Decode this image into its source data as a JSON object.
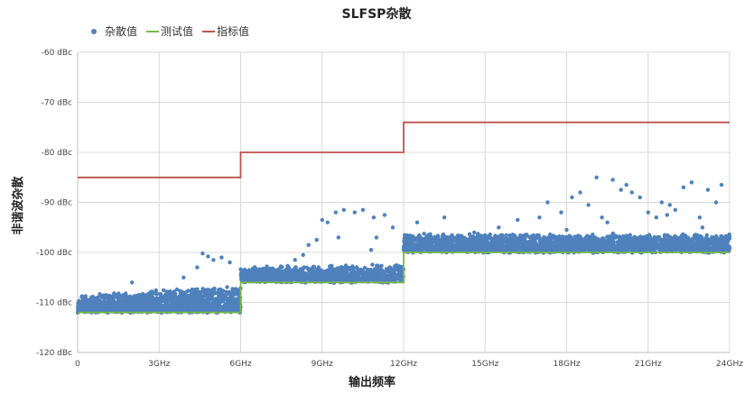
{
  "chart_data": {
    "type": "scatter",
    "title": "SLFSP杂散",
    "xlabel": "输出频率",
    "ylabel": "非谐波杂散",
    "xlim": [
      0,
      24
    ],
    "ylim": [
      -120,
      -60
    ],
    "x_ticks": [
      "0",
      "3GHz",
      "6GHz",
      "9GHz",
      "12GHz",
      "15GHz",
      "18GHz",
      "21GHz",
      "24GHz"
    ],
    "y_ticks": [
      "-60 dBc",
      "-70 dBc",
      "-80 dBc",
      "-90 dBc",
      "-100 dBc",
      "-110 dBc",
      "-120 dBc"
    ],
    "grid": true,
    "legend": "top-left",
    "series": [
      {
        "name": "杂散值",
        "kind": "scatter",
        "color": "#4f81bd",
        "bands": [
          {
            "x": [
              0,
              6
            ],
            "base": -111.5,
            "spread": 4.5,
            "ramp": 2.0,
            "count": 1400
          },
          {
            "x": [
              6,
              12
            ],
            "base": -105.5,
            "spread": 4.0,
            "ramp": 0.5,
            "count": 1000
          },
          {
            "x": [
              12,
              24
            ],
            "base": -99.5,
            "spread": 5.0,
            "ramp": 0.0,
            "count": 2400
          }
        ],
        "outliers": [
          [
            4.6,
            -100.2
          ],
          [
            4.8,
            -100.8
          ],
          [
            5.0,
            -101.5
          ],
          [
            5.3,
            -101.0
          ],
          [
            5.6,
            -102.0
          ],
          [
            4.4,
            -103.0
          ],
          [
            3.9,
            -105.0
          ],
          [
            2.0,
            -106.0
          ],
          [
            8.3,
            -100.5
          ],
          [
            8.5,
            -98.5
          ],
          [
            8.8,
            -97.5
          ],
          [
            9.0,
            -93.5
          ],
          [
            9.2,
            -94.0
          ],
          [
            9.5,
            -92.0
          ],
          [
            9.8,
            -91.5
          ],
          [
            10.2,
            -92.0
          ],
          [
            10.5,
            -91.5
          ],
          [
            10.9,
            -93.0
          ],
          [
            11.3,
            -92.5
          ],
          [
            11.6,
            -95.0
          ],
          [
            9.6,
            -97.0
          ],
          [
            10.8,
            -99.5
          ],
          [
            11.0,
            -97.0
          ],
          [
            8.0,
            -101.5
          ],
          [
            13.5,
            -93.0
          ],
          [
            14.6,
            -96.0
          ],
          [
            16.2,
            -93.5
          ],
          [
            17.0,
            -93.0
          ],
          [
            17.3,
            -90.0
          ],
          [
            17.8,
            -92.0
          ],
          [
            18.2,
            -89.0
          ],
          [
            18.5,
            -88.0
          ],
          [
            18.8,
            -90.5
          ],
          [
            19.1,
            -85.0
          ],
          [
            19.3,
            -93.0
          ],
          [
            19.7,
            -85.5
          ],
          [
            20.0,
            -87.5
          ],
          [
            20.2,
            -86.5
          ],
          [
            20.4,
            -88.0
          ],
          [
            20.7,
            -89.0
          ],
          [
            21.0,
            -92.0
          ],
          [
            21.3,
            -93.0
          ],
          [
            21.5,
            -90.0
          ],
          [
            21.8,
            -90.5
          ],
          [
            22.0,
            -91.5
          ],
          [
            22.3,
            -87.0
          ],
          [
            22.6,
            -86.0
          ],
          [
            22.9,
            -93.0
          ],
          [
            23.2,
            -87.5
          ],
          [
            23.5,
            -90.0
          ],
          [
            23.7,
            -86.5
          ],
          [
            15.5,
            -95.0
          ],
          [
            16.5,
            -96.5
          ],
          [
            19.5,
            -94.0
          ],
          [
            18.0,
            -95.5
          ],
          [
            21.7,
            -92.5
          ],
          [
            23.0,
            -95.0
          ],
          [
            12.5,
            -94.0
          ]
        ]
      },
      {
        "name": "测试值",
        "kind": "line",
        "color": "#7ab648",
        "x": [
          0,
          6,
          6,
          12,
          12,
          24
        ],
        "y": [
          -112,
          -112,
          -106,
          -106,
          -100,
          -100
        ]
      },
      {
        "name": "指标值",
        "kind": "line",
        "color": "#c0504d",
        "x": [
          0,
          6,
          6,
          12,
          12,
          24
        ],
        "y": [
          -85,
          -85,
          -80,
          -80,
          -74,
          -74
        ]
      }
    ]
  }
}
